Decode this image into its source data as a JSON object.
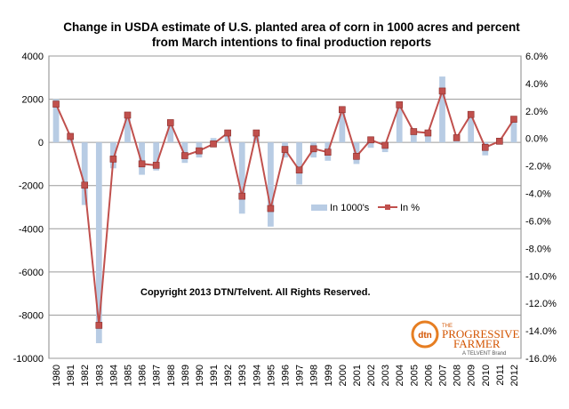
{
  "chart_data": {
    "type": "bar",
    "title_lines": [
      "Change in USDA estimate of U.S. planted area of corn in 1000 acres and percent",
      "from March intentions to final production reports"
    ],
    "categories": [
      "1980",
      "1981",
      "1982",
      "1983",
      "1984",
      "1985",
      "1986",
      "1987",
      "1988",
      "1989",
      "1990",
      "1991",
      "1992",
      "1993",
      "1994",
      "1995",
      "1996",
      "1997",
      "1998",
      "1999",
      "2000",
      "2001",
      "2002",
      "2003",
      "2004",
      "2005",
      "2006",
      "2007",
      "2008",
      "2009",
      "2010",
      "2011",
      "2012"
    ],
    "series": [
      {
        "name": "In 1000's",
        "type": "bar",
        "axis": "left",
        "color": "#b8cce4",
        "values": [
          2000,
          200,
          -2900,
          -9300,
          -1200,
          1200,
          -1500,
          -1300,
          800,
          -950,
          -700,
          200,
          350,
          -3300,
          350,
          -3900,
          -700,
          -1950,
          -700,
          -850,
          1650,
          -1000,
          -250,
          -450,
          1800,
          500,
          450,
          3050,
          50,
          1200,
          -600,
          -100,
          1000
        ]
      },
      {
        "name": "In %",
        "type": "line",
        "axis": "right",
        "color": "#c0504d",
        "values": [
          2.5,
          0.15,
          -3.4,
          -13.6,
          -1.5,
          1.7,
          -1.85,
          -1.95,
          1.15,
          -1.25,
          -0.9,
          -0.4,
          0.4,
          -4.2,
          0.4,
          -5.1,
          -0.8,
          -2.3,
          -0.75,
          -1.0,
          2.1,
          -1.3,
          -0.1,
          -0.5,
          2.45,
          0.5,
          0.4,
          3.45,
          0.05,
          1.75,
          -0.65,
          -0.2,
          1.4
        ]
      }
    ],
    "y_left": {
      "min": -10000,
      "max": 4000,
      "step": 2000
    },
    "y_right": {
      "min": -16,
      "max": 6,
      "step": 2
    },
    "grid": true,
    "legend_position": "center-right"
  },
  "annotation": "Copyright 2013 DTN/Telvent. All Rights Reserved.",
  "logo": {
    "badge": "dtn",
    "line1": "THE",
    "line2": "PROGRESSIVE",
    "line3": "FARMER",
    "line4": "A TELVENT Brand"
  }
}
